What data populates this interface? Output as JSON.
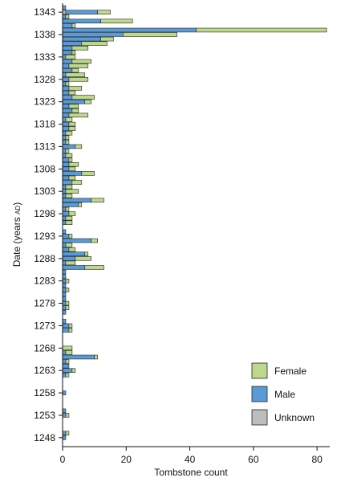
{
  "chart_data": {
    "type": "bar",
    "orientation": "horizontal",
    "stacked": true,
    "xlabel": "Tombstone count",
    "ylabel": "Date (years AD)",
    "ylabel_main": "Date (years ",
    "ylabel_suffix": "AD",
    "ylabel_close": ")",
    "xlim": [
      0,
      84
    ],
    "ylim": [
      1246,
      1345
    ],
    "xticks": [
      0,
      20,
      40,
      60,
      80
    ],
    "yticks": [
      1248,
      1253,
      1258,
      1263,
      1268,
      1273,
      1278,
      1283,
      1288,
      1293,
      1298,
      1303,
      1308,
      1313,
      1318,
      1323,
      1328,
      1333,
      1338,
      1343
    ],
    "grid": false,
    "legend_position": "bottom-right",
    "colors": {
      "Female": "#bcd88c",
      "Male": "#5b9bd5",
      "Unknown": "#bdbdbd"
    },
    "legend_order": [
      "Female",
      "Male",
      "Unknown"
    ],
    "years": [
      1248,
      1249,
      1253,
      1254,
      1258,
      1262,
      1263,
      1264,
      1265,
      1266,
      1267,
      1268,
      1272,
      1273,
      1274,
      1276,
      1277,
      1278,
      1279,
      1280,
      1281,
      1282,
      1283,
      1284,
      1285,
      1286,
      1287,
      1288,
      1289,
      1290,
      1291,
      1292,
      1293,
      1294,
      1296,
      1297,
      1298,
      1299,
      1300,
      1301,
      1302,
      1303,
      1304,
      1305,
      1306,
      1307,
      1308,
      1309,
      1310,
      1311,
      1312,
      1313,
      1314,
      1315,
      1316,
      1317,
      1318,
      1319,
      1320,
      1321,
      1322,
      1323,
      1324,
      1325,
      1326,
      1327,
      1328,
      1329,
      1330,
      1331,
      1332,
      1333,
      1334,
      1335,
      1336,
      1337,
      1338,
      1339,
      1340,
      1341,
      1342,
      1343,
      1344
    ],
    "series": [
      {
        "name": "Unknown",
        "values": [
          0,
          0,
          0,
          0,
          0,
          0,
          0,
          0,
          0,
          0,
          0,
          0,
          0,
          0,
          0,
          0,
          0,
          0,
          0,
          0,
          0,
          0,
          0,
          0,
          0,
          0,
          0,
          0,
          0,
          0,
          0,
          0,
          0,
          0,
          0,
          0,
          0,
          0,
          0,
          0,
          0,
          0,
          0,
          0,
          0,
          0,
          0,
          0,
          0,
          0,
          0,
          0,
          0,
          0,
          0,
          0,
          0,
          0,
          0,
          0,
          0,
          0,
          0,
          0,
          0,
          0,
          0,
          0,
          0,
          0,
          0,
          0,
          0,
          0,
          0,
          0,
          0,
          0,
          0,
          0,
          0,
          1,
          0
        ]
      },
      {
        "name": "Male",
        "values": [
          1,
          1,
          1,
          1,
          1,
          1,
          3,
          2,
          1,
          10,
          1,
          0,
          2,
          2,
          1,
          1,
          1,
          1,
          1,
          1,
          1,
          1,
          1,
          1,
          1,
          7,
          1,
          4,
          7,
          2,
          1,
          9,
          2,
          1,
          1,
          1,
          2,
          1,
          5,
          9,
          1,
          1,
          1,
          3,
          2,
          6,
          2,
          2,
          2,
          1,
          1,
          4,
          1,
          1,
          1,
          2,
          2,
          1,
          2,
          3,
          2,
          7,
          3,
          2,
          2,
          1,
          2,
          1,
          3,
          2,
          3,
          1,
          3,
          3,
          6,
          12,
          19,
          42,
          3,
          12,
          1,
          10,
          1
        ]
      },
      {
        "name": "Female",
        "values": [
          0,
          1,
          1,
          0,
          0,
          1,
          1,
          0,
          1,
          1,
          2,
          3,
          1,
          1,
          0,
          0,
          1,
          1,
          0,
          0,
          1,
          0,
          1,
          0,
          0,
          6,
          3,
          5,
          1,
          2,
          2,
          2,
          1,
          0,
          2,
          2,
          2,
          1,
          1,
          4,
          2,
          4,
          2,
          3,
          2,
          4,
          2,
          3,
          1,
          2,
          1,
          2,
          1,
          1,
          2,
          2,
          2,
          2,
          6,
          2,
          3,
          2,
          7,
          2,
          4,
          1,
          6,
          6,
          2,
          6,
          6,
          3,
          1,
          5,
          8,
          4,
          17,
          41,
          1,
          10,
          1,
          4,
          0
        ]
      }
    ]
  }
}
